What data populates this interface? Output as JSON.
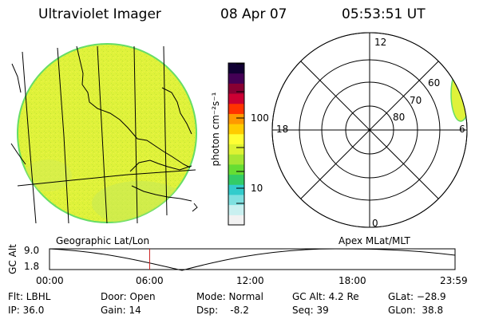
{
  "header": {
    "title": "Ultraviolet Imager",
    "date": "08 Apr 07",
    "time": "05:53:51 UT"
  },
  "colorbar": {
    "unit_label": "photon cm⁻²s⁻¹",
    "ticks": [
      "100",
      "10"
    ],
    "colors": [
      "#f2f2f2",
      "#c9f0f0",
      "#7fe0e0",
      "#33cccc",
      "#33cc66",
      "#66dd33",
      "#a6e633",
      "#ddf233",
      "#ffff33",
      "#ffcc00",
      "#ff9900",
      "#ff3300",
      "#cc0033",
      "#880033",
      "#440055",
      "#110033"
    ]
  },
  "polar_plot": {
    "mlt_labels": {
      "top": "12",
      "left": "18",
      "right": "6",
      "bottom": "0"
    },
    "lat_labels": [
      "60",
      "70",
      "80"
    ]
  },
  "map_labels": {
    "left": "Geographic Lat/Lon",
    "right": "Apex MLat/MLT"
  },
  "gc_alt_plot": {
    "axis_label": "GC Alt",
    "y_ticks": [
      "9.0",
      "1.8"
    ],
    "x_ticks": [
      "00:00",
      "06:00",
      "12:00",
      "18:00",
      "23:59"
    ],
    "current_time_fraction": 0.247,
    "colors": {
      "marker": "#cc2222"
    }
  },
  "footer": {
    "flt": "Flt: LBHL",
    "ip": "IP: 36.0",
    "door": "Door: Open",
    "gain": "Gain: 14",
    "mode": "Mode: Normal",
    "dsp": "Dsp:    -8.2",
    "gcalt": "GC Alt: 4.2 Re",
    "seq": "Seq: 39",
    "glat": "GLat: −28.9",
    "glon": "GLon:  38.8"
  }
}
